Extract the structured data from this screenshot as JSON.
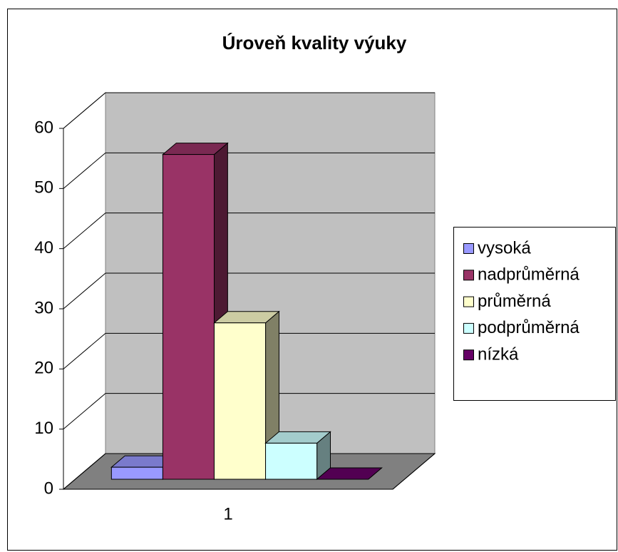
{
  "chart_data": {
    "type": "bar3d",
    "title": "Úroveň kvality výuky",
    "categories": [
      "1"
    ],
    "series": [
      {
        "name": "vysoká",
        "color": "#9999ff",
        "values": [
          2
        ]
      },
      {
        "name": "nadprůměrná",
        "color": "#993366",
        "values": [
          54
        ]
      },
      {
        "name": "průměrná",
        "color": "#ffffcc",
        "values": [
          26
        ]
      },
      {
        "name": "podprůměrná",
        "color": "#ccffff",
        "values": [
          6
        ]
      },
      {
        "name": "nízká",
        "color": "#660066",
        "values": [
          0
        ]
      }
    ],
    "ylim": [
      0,
      60
    ],
    "yticks": [
      0,
      10,
      20,
      30,
      40,
      50,
      60
    ],
    "grid": true,
    "legend": "right"
  }
}
